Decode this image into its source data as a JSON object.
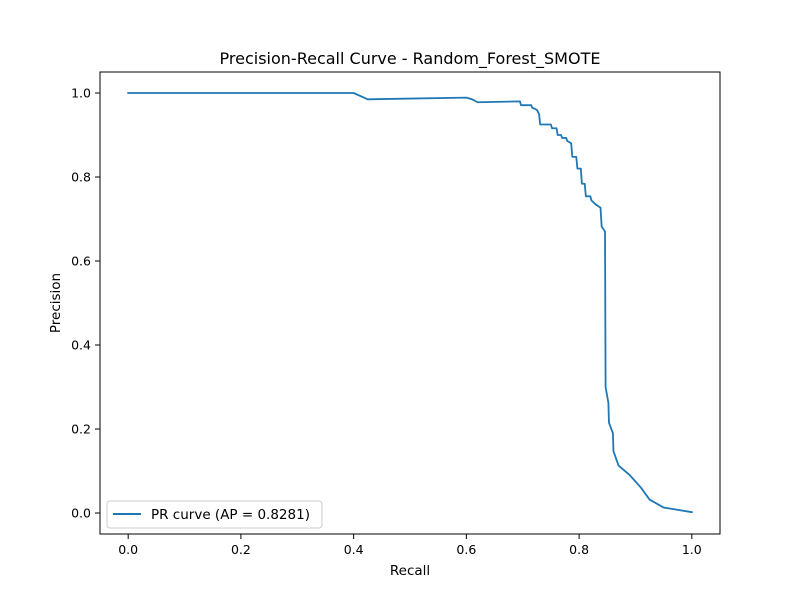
{
  "chart_data": {
    "type": "line",
    "title": "Precision-Recall Curve - Random_Forest_SMOTE",
    "xlabel": "Recall",
    "ylabel": "Precision",
    "xlim": [
      -0.05,
      1.05
    ],
    "ylim": [
      -0.05,
      1.05
    ],
    "xticks": [
      0.0,
      0.2,
      0.4,
      0.6,
      0.8,
      1.0
    ],
    "yticks": [
      0.0,
      0.2,
      0.4,
      0.6,
      0.8,
      1.0
    ],
    "xtick_labels": [
      "0.0",
      "0.2",
      "0.4",
      "0.6",
      "0.8",
      "1.0"
    ],
    "ytick_labels": [
      "0.0",
      "0.2",
      "0.4",
      "0.6",
      "0.8",
      "1.0"
    ],
    "grid": false,
    "legend": {
      "position": "lower-left"
    },
    "series": [
      {
        "name": "PR curve (AP = 0.8281)",
        "color": "#1f77b4",
        "points": [
          [
            0.0,
            1.0
          ],
          [
            0.4,
            1.0
          ],
          [
            0.425,
            0.985
          ],
          [
            0.6,
            0.989
          ],
          [
            0.61,
            0.985
          ],
          [
            0.62,
            0.978
          ],
          [
            0.695,
            0.98
          ],
          [
            0.697,
            0.971
          ],
          [
            0.715,
            0.971
          ],
          [
            0.717,
            0.965
          ],
          [
            0.725,
            0.96
          ],
          [
            0.729,
            0.95
          ],
          [
            0.731,
            0.925
          ],
          [
            0.75,
            0.925
          ],
          [
            0.752,
            0.916
          ],
          [
            0.76,
            0.916
          ],
          [
            0.762,
            0.9
          ],
          [
            0.768,
            0.9
          ],
          [
            0.77,
            0.893
          ],
          [
            0.777,
            0.893
          ],
          [
            0.779,
            0.886
          ],
          [
            0.786,
            0.88
          ],
          [
            0.788,
            0.848
          ],
          [
            0.795,
            0.848
          ],
          [
            0.797,
            0.82
          ],
          [
            0.803,
            0.82
          ],
          [
            0.805,
            0.784
          ],
          [
            0.81,
            0.784
          ],
          [
            0.812,
            0.754
          ],
          [
            0.82,
            0.754
          ],
          [
            0.822,
            0.744
          ],
          [
            0.83,
            0.734
          ],
          [
            0.838,
            0.727
          ],
          [
            0.84,
            0.682
          ],
          [
            0.846,
            0.67
          ],
          [
            0.847,
            0.3
          ],
          [
            0.852,
            0.262
          ],
          [
            0.853,
            0.215
          ],
          [
            0.86,
            0.19
          ],
          [
            0.861,
            0.147
          ],
          [
            0.87,
            0.113
          ],
          [
            0.89,
            0.09
          ],
          [
            0.91,
            0.06
          ],
          [
            0.925,
            0.032
          ],
          [
            0.95,
            0.013
          ],
          [
            1.0,
            0.002
          ]
        ]
      }
    ]
  }
}
